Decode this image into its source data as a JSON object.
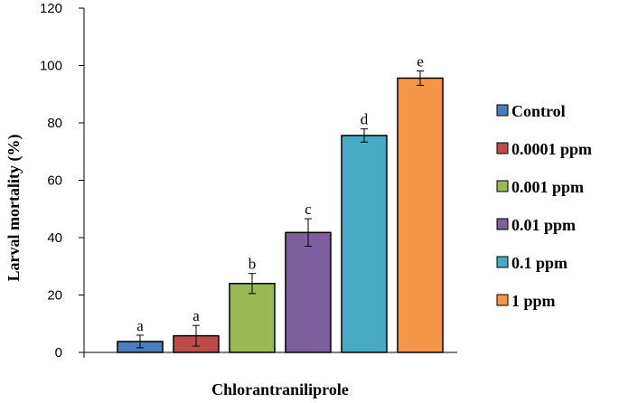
{
  "chart_data": {
    "type": "bar",
    "xlabel": "Chlorantraniliprole",
    "ylabel": "Larval mortality (%)",
    "ylim": [
      0,
      120
    ],
    "yticks": [
      0,
      20,
      40,
      60,
      80,
      100,
      120
    ],
    "yticks_labels": [
      "0",
      "20",
      "40",
      "60",
      "80",
      "100",
      "120"
    ],
    "grid": false,
    "legend_position": "right",
    "series": [
      {
        "name": "Control",
        "value": 3.8,
        "error": 2.2,
        "letter": "a",
        "color": "#4a7ebb"
      },
      {
        "name": "0.0001 ppm",
        "value": 5.8,
        "error": 3.6,
        "letter": "a",
        "color": "#be4b48"
      },
      {
        "name": "0.001 ppm",
        "value": 24.0,
        "error": 3.5,
        "letter": "b",
        "color": "#98b954"
      },
      {
        "name": "0.01 ppm",
        "value": 41.8,
        "error": 4.8,
        "letter": "c",
        "color": "#7d5fa0"
      },
      {
        "name": "0.1 ppm",
        "value": 75.6,
        "error": 2.3,
        "letter": "d",
        "color": "#46aac5"
      },
      {
        "name": "1 ppm",
        "value": 95.6,
        "error": 2.5,
        "letter": "e",
        "color": "#f69546"
      }
    ]
  }
}
